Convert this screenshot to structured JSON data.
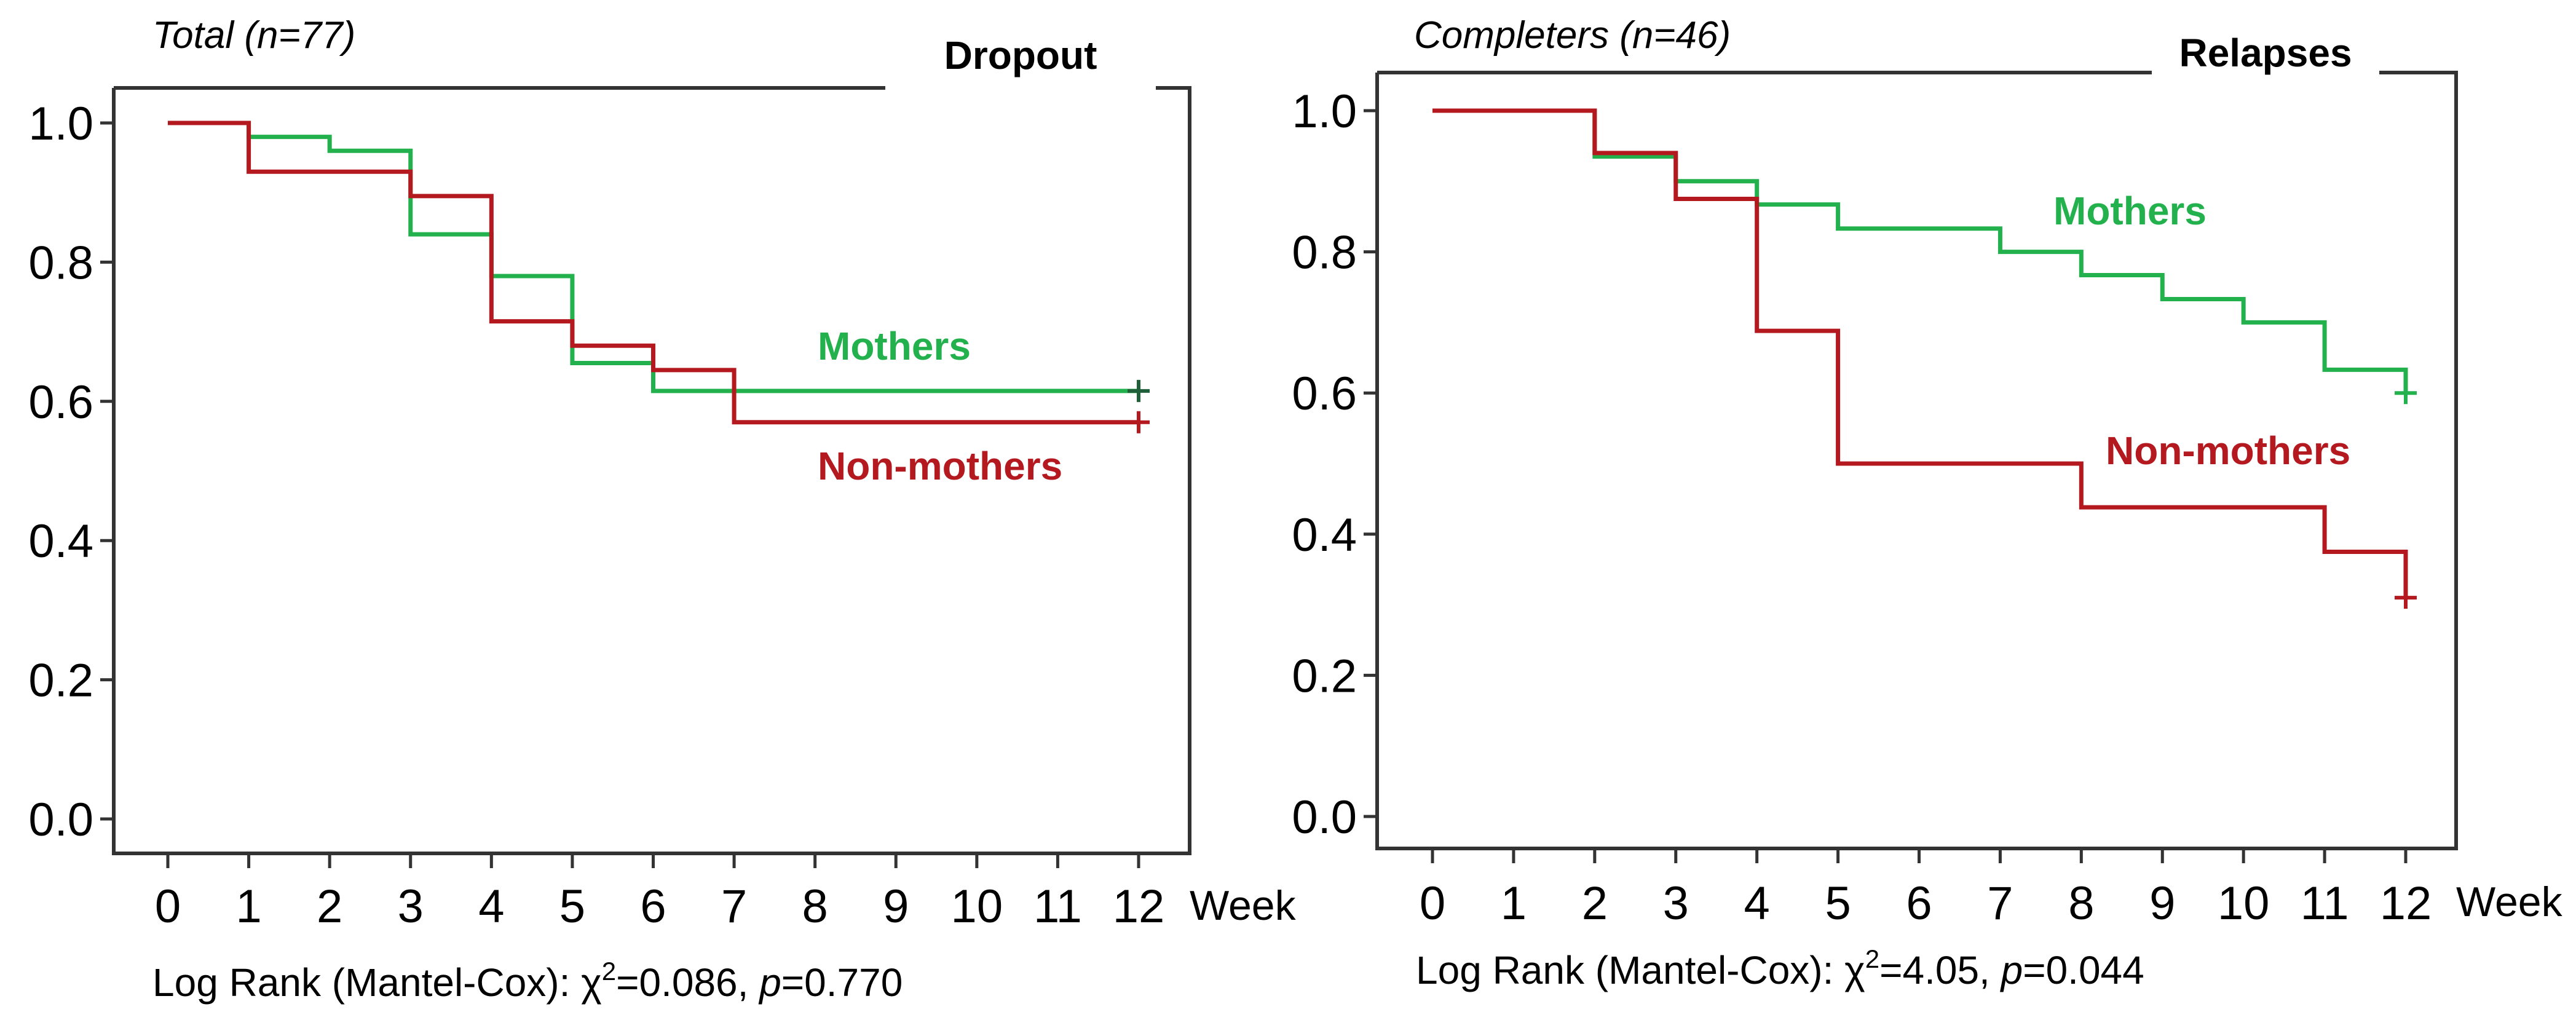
{
  "figure": {
    "colors": {
      "mothers": "#22b14c",
      "non_mothers": "#b3191f",
      "censor_dark": "#1f5f3a",
      "axis": "#333333"
    }
  },
  "chart_data": [
    {
      "type": "line",
      "subtype": "kaplan-meier",
      "cohort_title": "Total (n=77)",
      "box_title": "Dropout",
      "xlabel": "Week",
      "ylabel": "",
      "xlim": [
        0,
        12
      ],
      "ylim": [
        0,
        1
      ],
      "x_ticks": [
        "0",
        "1",
        "2",
        "3",
        "4",
        "5",
        "6",
        "7",
        "8",
        "9",
        "10",
        "11",
        "12"
      ],
      "y_ticks": [
        "0.0",
        "0.2",
        "0.4",
        "0.6",
        "0.8",
        "1.0"
      ],
      "grid": false,
      "series": [
        {
          "name": "Mothers",
          "color_key": "mothers",
          "censor_color_key": "censor_dark",
          "steps": [
            [
              0,
              1.0
            ],
            [
              1,
              0.98
            ],
            [
              2,
              0.96
            ],
            [
              3,
              0.84
            ],
            [
              4,
              0.78
            ],
            [
              5,
              0.655
            ],
            [
              6,
              0.615
            ],
            [
              12,
              0.615
            ]
          ],
          "censored": [
            [
              12,
              0.615
            ]
          ]
        },
        {
          "name": "Non-mothers",
          "color_key": "non_mothers",
          "censor_color_key": "non_mothers",
          "steps": [
            [
              0,
              1.0
            ],
            [
              1,
              0.93
            ],
            [
              3,
              0.895
            ],
            [
              4,
              0.715
            ],
            [
              5,
              0.68
            ],
            [
              6,
              0.645
            ],
            [
              7,
              0.57
            ],
            [
              12,
              0.57
            ]
          ],
          "censored": [
            [
              12,
              0.57
            ]
          ]
        }
      ],
      "annotations": {
        "mothers_label": "Mothers",
        "non_mothers_label": "Non-mothers"
      },
      "stats": {
        "prefix": "Log Rank (Mantel-Cox): ",
        "chi": "χ",
        "chi_sup": "2",
        "chi_value": "=0.086, ",
        "p_symbol": "p",
        "p_value": "=0.770"
      }
    },
    {
      "type": "line",
      "subtype": "kaplan-meier",
      "cohort_title": "Completers (n=46)",
      "box_title": "Relapses",
      "xlabel": "Week",
      "ylabel": "",
      "xlim": [
        0,
        12
      ],
      "ylim": [
        0,
        1
      ],
      "x_ticks": [
        "0",
        "1",
        "2",
        "3",
        "4",
        "5",
        "6",
        "7",
        "8",
        "9",
        "10",
        "11",
        "12"
      ],
      "y_ticks": [
        "0.0",
        "0.2",
        "0.4",
        "0.6",
        "0.8",
        "1.0"
      ],
      "grid": false,
      "series": [
        {
          "name": "Mothers",
          "color_key": "mothers",
          "censor_color_key": "mothers",
          "steps": [
            [
              0,
              1.0
            ],
            [
              2,
              0.935
            ],
            [
              3,
              0.9
            ],
            [
              4,
              0.867
            ],
            [
              5,
              0.833
            ],
            [
              7,
              0.8
            ],
            [
              8,
              0.767
            ],
            [
              9,
              0.733
            ],
            [
              10,
              0.7
            ],
            [
              11,
              0.633
            ],
            [
              12,
              0.6
            ]
          ],
          "censored": [
            [
              12,
              0.6
            ]
          ]
        },
        {
          "name": "Non-mothers",
          "color_key": "non_mothers",
          "censor_color_key": "non_mothers",
          "steps": [
            [
              0,
              1.0
            ],
            [
              2,
              0.94
            ],
            [
              3,
              0.875
            ],
            [
              4,
              0.688
            ],
            [
              5,
              0.5
            ],
            [
              8,
              0.438
            ],
            [
              11,
              0.375
            ],
            [
              12,
              0.31
            ]
          ],
          "censored": [
            [
              12,
              0.31
            ]
          ]
        }
      ],
      "annotations": {
        "mothers_label": "Mothers",
        "non_mothers_label": "Non-mothers"
      },
      "stats": {
        "prefix": "Log Rank (Mantel-Cox): ",
        "chi": "χ",
        "chi_sup": "2",
        "chi_value": "=4.05, ",
        "p_symbol": "p",
        "p_value": "=0.044"
      }
    }
  ]
}
